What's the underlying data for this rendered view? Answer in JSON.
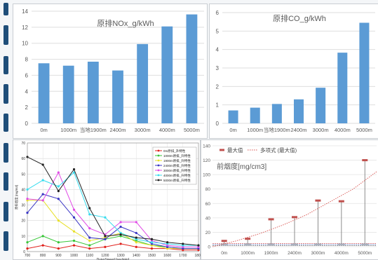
{
  "decor": {
    "accent_color": "#1f4e79"
  },
  "chart_data": [
    {
      "type": "bar",
      "title": "原排NOx_g/kWh",
      "categories": [
        "0m",
        "1000m",
        "当地1900m",
        "2400m",
        "3000m",
        "4000m",
        "5000m"
      ],
      "values": [
        7.5,
        7.2,
        7.7,
        6.6,
        9.9,
        12.1,
        13.6
      ],
      "ylim": [
        0,
        14
      ],
      "yticks": [
        "0",
        "2",
        "4",
        "6",
        "8",
        "10",
        "12",
        "14"
      ],
      "bar_color": "#5b9bd5",
      "grid": true
    },
    {
      "type": "bar",
      "title": "原排CO_g/kWh",
      "categories": [
        "0m",
        "1000m",
        "当地1900m",
        "2400m",
        "3000m",
        "4000m",
        "5000m"
      ],
      "values": [
        0.7,
        0.85,
        1.05,
        1.3,
        1.93,
        3.83,
        5.45
      ],
      "ylim": [
        0,
        6
      ],
      "yticks": [
        "0",
        "1",
        "2",
        "3",
        "4",
        "5",
        "6"
      ],
      "bar_color": "#5b9bd5",
      "grid": true
    },
    {
      "type": "line",
      "xlabel": "DynoSpeed [rev/min]",
      "ylabel": "原排烟度 [mg/m3]",
      "x": [
        700,
        800,
        900,
        1000,
        1100,
        1200,
        1300,
        1400,
        1500,
        1600,
        1700,
        1800
      ],
      "xticks": [
        "700",
        "800",
        "900",
        "1000",
        "1100",
        "1200",
        "1300",
        "1400",
        "1500",
        "1600",
        "1700",
        "1800"
      ],
      "ylim": [
        0,
        70
      ],
      "yticks": [
        "0",
        "10",
        "20",
        "30",
        "40",
        "50",
        "60",
        "70"
      ],
      "legend_position": "top-right",
      "series": [
        {
          "name": "0m原排_升特性",
          "color": "#e0201b",
          "values": [
            2,
            4,
            2,
            4,
            2,
            3,
            5,
            3,
            2,
            2,
            1,
            1
          ]
        },
        {
          "name": "1000m原排_升特性",
          "color": "#35c635",
          "values": [
            6,
            10,
            6,
            7,
            4,
            8,
            10,
            7,
            4,
            3,
            2,
            2
          ]
        },
        {
          "name": "1900m原排_升特性",
          "color": "#e8e02a",
          "values": [
            33,
            33,
            20,
            13,
            7,
            9,
            12,
            6,
            4,
            2,
            2,
            2
          ]
        },
        {
          "name": "2400m原排_升特性",
          "color": "#3a36c4",
          "values": [
            25,
            37,
            34,
            22,
            9,
            8,
            16,
            12,
            5,
            3,
            2,
            2
          ]
        },
        {
          "name": "3000m原排_升特性",
          "color": "#e04ae6",
          "values": [
            34,
            33,
            51,
            27,
            15,
            11,
            19,
            19,
            7,
            4,
            3,
            3
          ]
        },
        {
          "name": "4000m原排_升特性",
          "color": "#38dcee",
          "values": [
            40,
            46,
            42,
            51,
            24,
            22,
            12,
            8,
            6,
            5,
            4,
            4
          ]
        },
        {
          "name": "5000m原排_升特性",
          "color": "#222222",
          "values": [
            61,
            56,
            39,
            53,
            28,
            10,
            11,
            9,
            8,
            6,
            5,
            4
          ]
        }
      ]
    },
    {
      "type": "scatter",
      "ylabel": "前烟度[mg/cm3]",
      "categories": [
        "0m",
        "1000m",
        "1900m",
        "2400m",
        "3000m",
        "4000m",
        "5000m"
      ],
      "ylim": [
        0,
        140
      ],
      "yticks": [
        "0",
        "20",
        "40",
        "60",
        "80",
        "100",
        "120",
        "140"
      ],
      "legend_position": "top-left",
      "series": [
        {
          "name": "最大值",
          "color": "#c0504d",
          "values": [
            8,
            11,
            38,
            41,
            64,
            63,
            120
          ]
        },
        {
          "name": "多项式 (最大值)",
          "color": "#d9534f",
          "line_style": "dotted",
          "curve": [
            0,
            8,
            18,
            30,
            44,
            62,
            80,
            104
          ]
        }
      ],
      "baseline_lines": [
        {
          "color": "#e06666",
          "level": 4.5
        },
        {
          "color": "#6f8fd0",
          "level": 3
        },
        {
          "color": "#8a8a8a",
          "level": 1.5
        }
      ]
    }
  ]
}
